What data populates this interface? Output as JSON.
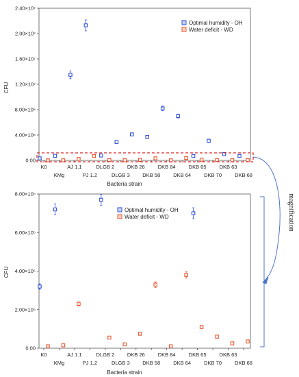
{
  "figure": {
    "annotation": "magnification"
  },
  "chart_data": [
    {
      "type": "scatter",
      "title": "",
      "xlabel": "Bacteria strain",
      "ylabel": "CFU",
      "ylim": [
        0,
        24000000
      ],
      "yticks": [
        {
          "value": 0,
          "label": "0.00"
        },
        {
          "value": 4000000,
          "label": "4.00×10⁶"
        },
        {
          "value": 8000000,
          "label": "8.00×10⁶"
        },
        {
          "value": 12000000,
          "label": "1.20×10⁷"
        },
        {
          "value": 16000000,
          "label": "1.60×10⁷"
        },
        {
          "value": 20000000,
          "label": "2.00×10⁷"
        },
        {
          "value": 24000000,
          "label": "2.40×10⁷"
        }
      ],
      "categories": [
        "K0",
        "KMg",
        "AJ 1.1",
        "PJ 1.2",
        "DLGB 2",
        "DLGB 3",
        "DKB 26",
        "DKB 58",
        "DKB 84",
        "DKB 64",
        "DKB 65",
        "DKB 70",
        "DKB 63",
        "DKB 68"
      ],
      "legend_position": "top-right",
      "series": [
        {
          "name": "Optimal humidity - OH",
          "color": "#2e4fd8",
          "values": [
            320000,
            720000,
            13500000,
            21300000,
            770000,
            2900000,
            4100000,
            3700000,
            8200000,
            7000000,
            700000,
            3100000,
            1000000,
            700000
          ]
        },
        {
          "name": "Water deficit - WD",
          "color": "#e8542b",
          "values": [
            10000,
            15000,
            230000,
            700000,
            55000,
            20000,
            75000,
            330000,
            10000,
            380000,
            110000,
            60000,
            25000,
            35000
          ]
        }
      ]
    },
    {
      "type": "scatter",
      "title": "",
      "xlabel": "Bacteria strain",
      "ylabel": "CFU",
      "ylim": [
        0,
        800000
      ],
      "yticks": [
        {
          "value": 0,
          "label": "0.00"
        },
        {
          "value": 200000,
          "label": "2.00×10⁵"
        },
        {
          "value": 400000,
          "label": "4.00×10⁵"
        },
        {
          "value": 600000,
          "label": "6.00×10⁵"
        },
        {
          "value": 800000,
          "label": "8.00×10⁵"
        }
      ],
      "categories": [
        "K0",
        "KMg",
        "AJ 1.1",
        "PJ 1.2",
        "DLGB 2",
        "DLGB 3",
        "DKB 26",
        "DKB 58",
        "DKB 84",
        "DKB 64",
        "DKB 65",
        "DKB 70",
        "DKB 63",
        "DKB 68"
      ],
      "legend_position": "top-right",
      "series": [
        {
          "name": "Optimal humidity - OH",
          "color": "#2e4fd8",
          "values": [
            320000,
            720000,
            null,
            null,
            770000,
            null,
            null,
            null,
            null,
            null,
            700000,
            null,
            null,
            null
          ]
        },
        {
          "name": "Water deficit - WD",
          "color": "#e8542b",
          "values": [
            10000,
            15000,
            230000,
            null,
            55000,
            20000,
            75000,
            330000,
            10000,
            380000,
            110000,
            60000,
            25000,
            35000
          ]
        }
      ]
    }
  ]
}
